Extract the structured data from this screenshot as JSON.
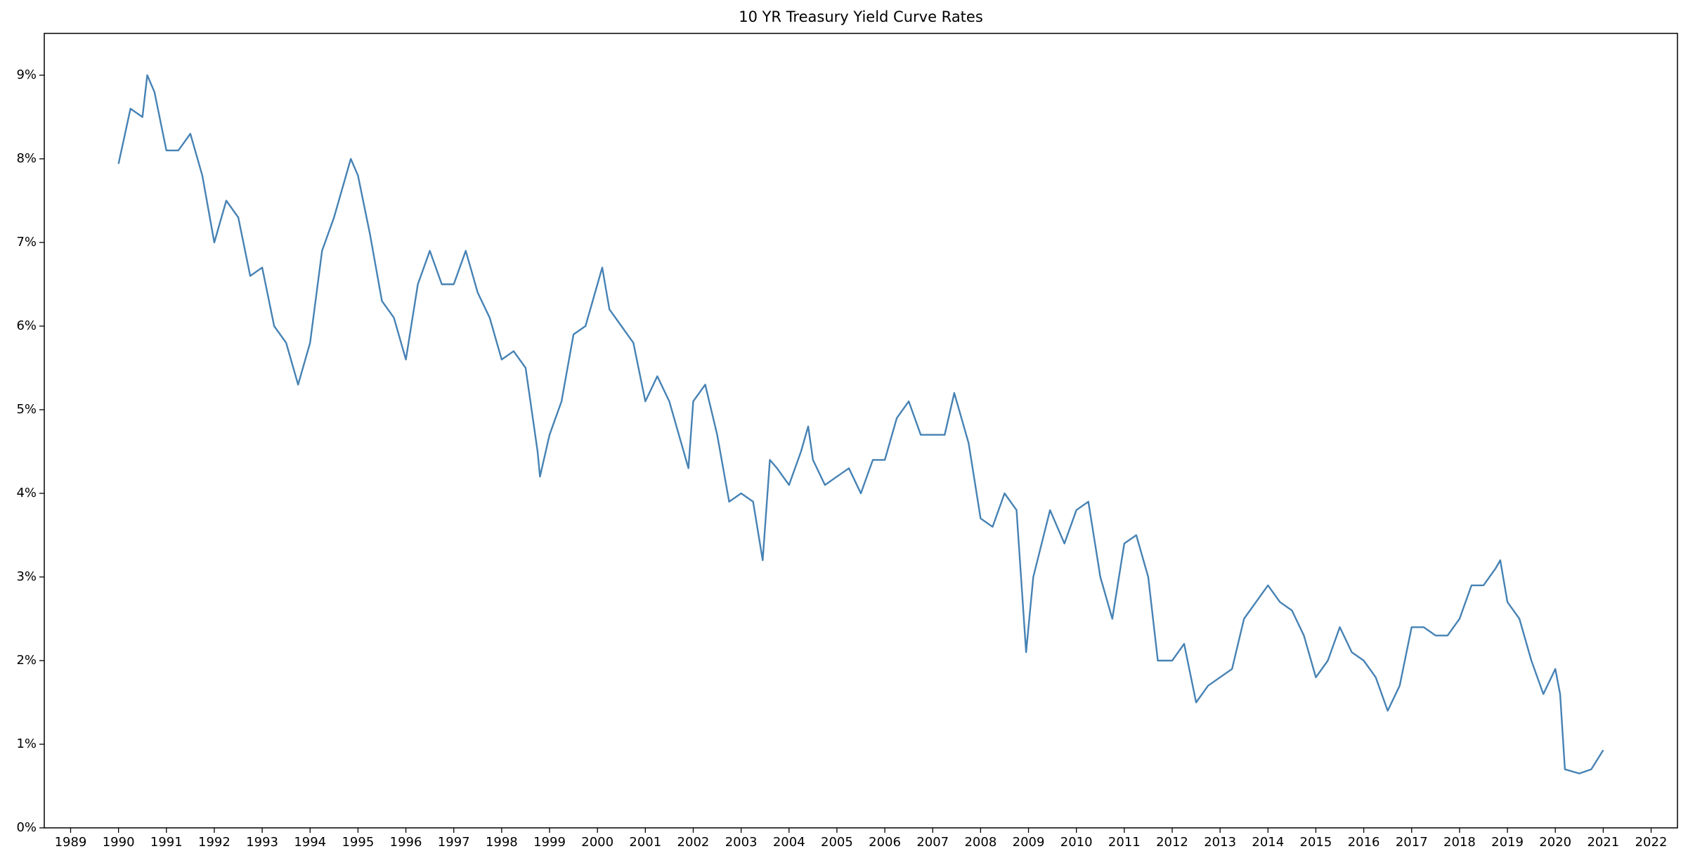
{
  "chart_data": {
    "type": "line",
    "title": "10 YR Treasury Yield Curve Rates",
    "x": [
      1990.0,
      1990.25,
      1990.5,
      1990.6,
      1990.75,
      1991.0,
      1991.25,
      1991.5,
      1991.75,
      1992.0,
      1992.25,
      1992.5,
      1992.75,
      1993.0,
      1993.25,
      1993.5,
      1993.75,
      1994.0,
      1994.25,
      1994.5,
      1994.85,
      1995.0,
      1995.25,
      1995.5,
      1995.75,
      1996.0,
      1996.25,
      1996.5,
      1996.75,
      1997.0,
      1997.25,
      1997.5,
      1997.75,
      1998.0,
      1998.25,
      1998.5,
      1998.75,
      1998.8,
      1999.0,
      1999.25,
      1999.5,
      1999.75,
      2000.0,
      2000.1,
      2000.25,
      2000.5,
      2000.75,
      2001.0,
      2001.25,
      2001.5,
      2001.75,
      2001.9,
      2002.0,
      2002.25,
      2002.5,
      2002.75,
      2003.0,
      2003.25,
      2003.45,
      2003.6,
      2003.75,
      2004.0,
      2004.25,
      2004.4,
      2004.5,
      2004.75,
      2005.0,
      2005.25,
      2005.5,
      2005.75,
      2006.0,
      2006.25,
      2006.5,
      2006.75,
      2007.0,
      2007.25,
      2007.45,
      2007.75,
      2008.0,
      2008.25,
      2008.5,
      2008.75,
      2008.95,
      2009.1,
      2009.45,
      2009.75,
      2010.0,
      2010.25,
      2010.5,
      2010.75,
      2011.0,
      2011.25,
      2011.5,
      2011.7,
      2012.0,
      2012.25,
      2012.5,
      2012.75,
      2013.0,
      2013.25,
      2013.5,
      2013.75,
      2014.0,
      2014.25,
      2014.5,
      2014.75,
      2015.0,
      2015.25,
      2015.5,
      2015.75,
      2016.0,
      2016.25,
      2016.5,
      2016.75,
      2017.0,
      2017.25,
      2017.5,
      2017.75,
      2018.0,
      2018.25,
      2018.5,
      2018.75,
      2018.85,
      2019.0,
      2019.25,
      2019.5,
      2019.75,
      2020.0,
      2020.1,
      2020.2,
      2020.5,
      2020.75,
      2021.0
    ],
    "series": [
      {
        "color": "#4682b4",
        "values": [
          7.94,
          8.6,
          8.5,
          9.0,
          8.8,
          8.1,
          8.1,
          8.3,
          7.8,
          7.0,
          7.5,
          7.3,
          6.6,
          6.7,
          6.0,
          5.8,
          5.3,
          5.8,
          6.9,
          7.3,
          8.0,
          7.8,
          7.1,
          6.3,
          6.1,
          5.6,
          6.5,
          6.9,
          6.5,
          6.5,
          6.9,
          6.4,
          6.1,
          5.6,
          5.7,
          5.5,
          4.5,
          4.2,
          4.7,
          5.1,
          5.9,
          6.0,
          6.5,
          6.7,
          6.2,
          6.0,
          5.8,
          5.1,
          5.4,
          5.1,
          4.6,
          4.3,
          5.1,
          5.3,
          4.7,
          3.9,
          4.0,
          3.9,
          3.2,
          4.4,
          4.3,
          4.1,
          4.5,
          4.8,
          4.4,
          4.1,
          4.2,
          4.3,
          4.0,
          4.4,
          4.4,
          4.9,
          5.1,
          4.7,
          4.7,
          4.7,
          5.2,
          4.6,
          3.7,
          3.6,
          4.0,
          3.8,
          2.1,
          3.0,
          3.8,
          3.4,
          3.8,
          3.9,
          3.0,
          2.5,
          3.4,
          3.5,
          3.0,
          2.0,
          2.0,
          2.2,
          1.5,
          1.7,
          1.8,
          1.9,
          2.5,
          2.7,
          2.9,
          2.7,
          2.6,
          2.3,
          1.8,
          2.0,
          2.4,
          2.1,
          2.0,
          1.8,
          1.4,
          1.7,
          2.4,
          2.4,
          2.3,
          2.3,
          2.5,
          2.9,
          2.9,
          3.1,
          3.2,
          2.7,
          2.5,
          2.0,
          1.6,
          1.9,
          1.6,
          0.7,
          0.65,
          0.7,
          0.93
        ]
      }
    ],
    "xlim": [
      1988.45,
      2022.55
    ],
    "xticks": [
      1989,
      1990,
      1991,
      1992,
      1993,
      1994,
      1995,
      1996,
      1997,
      1998,
      1999,
      2000,
      2001,
      2002,
      2003,
      2004,
      2005,
      2006,
      2007,
      2008,
      2009,
      2010,
      2011,
      2012,
      2013,
      2014,
      2015,
      2016,
      2017,
      2018,
      2019,
      2020,
      2021,
      2022
    ],
    "ylim": [
      0,
      9.5
    ],
    "yticks": [
      {
        "value": 0,
        "label": "0%"
      },
      {
        "value": 1,
        "label": "1%"
      },
      {
        "value": 2,
        "label": "2%"
      },
      {
        "value": 3,
        "label": "3%"
      },
      {
        "value": 4,
        "label": "4%"
      },
      {
        "value": 5,
        "label": "5%"
      },
      {
        "value": 6,
        "label": "6%"
      },
      {
        "value": 7,
        "label": "7%"
      },
      {
        "value": 8,
        "label": "8%"
      },
      {
        "value": 9,
        "label": "9%"
      }
    ],
    "grid": false
  }
}
